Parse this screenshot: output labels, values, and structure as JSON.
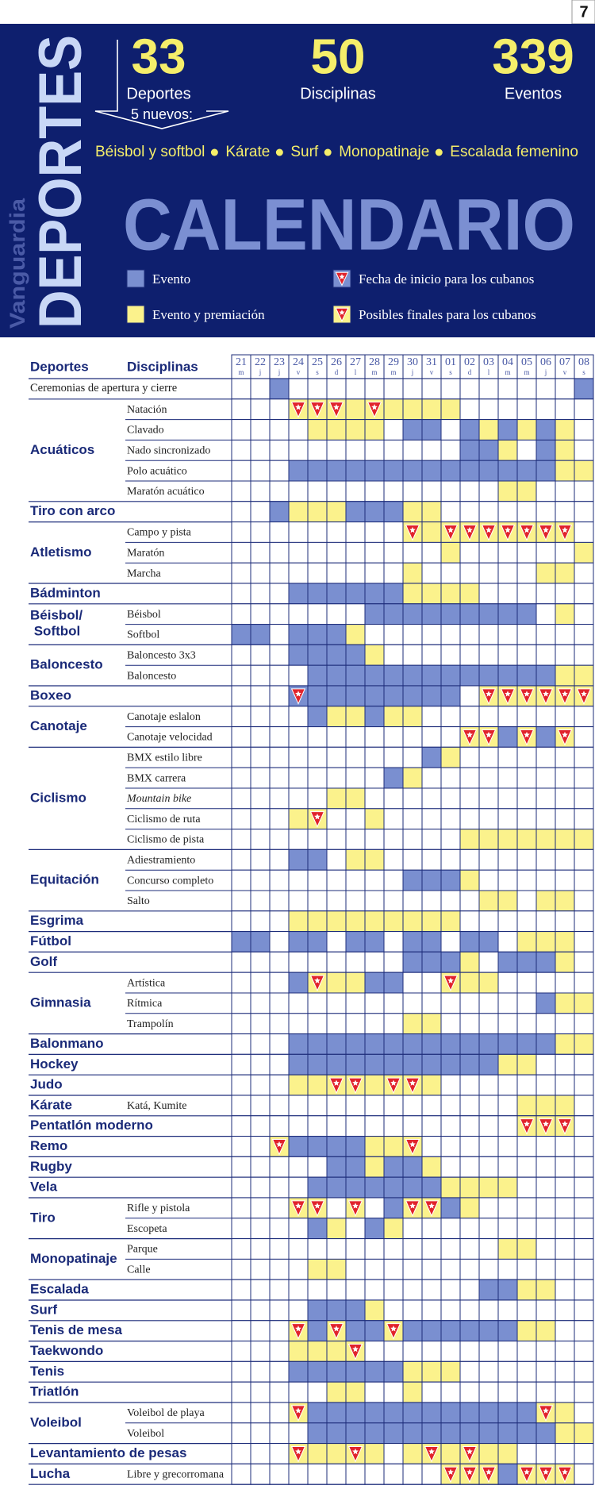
{
  "page_number": "7",
  "header": {
    "brand": "Vanguardia",
    "section": "DEPORTES",
    "stats": [
      {
        "value": "33",
        "label": "Deportes"
      },
      {
        "value": "50",
        "label": "Disciplinas"
      },
      {
        "value": "339",
        "label": "Eventos"
      }
    ],
    "new_count": "5 nuevos:",
    "new_sports": [
      "Béisbol y softbol",
      "Kárate",
      "Surf",
      "Monopatinaje",
      "Escalada femenino"
    ],
    "title": "CALENDARIO",
    "legend": [
      {
        "label": "Evento",
        "cell": "b"
      },
      {
        "label": "Evento y premiación",
        "cell": "y"
      },
      {
        "label": "Fecha de inicio para los cubanos",
        "cell": "B"
      },
      {
        "label": "Posibles finales para los cubanos",
        "cell": "Y"
      }
    ]
  },
  "table": {
    "columns": [
      "Deportes",
      "Disciplinas"
    ],
    "days": [
      {
        "day": "21",
        "weekday": "m"
      },
      {
        "day": "22",
        "weekday": "j"
      },
      {
        "day": "23",
        "weekday": "j"
      },
      {
        "day": "24",
        "weekday": "v"
      },
      {
        "day": "25",
        "weekday": "s"
      },
      {
        "day": "26",
        "weekday": "d"
      },
      {
        "day": "27",
        "weekday": "l"
      },
      {
        "day": "28",
        "weekday": "m"
      },
      {
        "day": "29",
        "weekday": "m"
      },
      {
        "day": "30",
        "weekday": "j"
      },
      {
        "day": "31",
        "weekday": "v"
      },
      {
        "day": "01",
        "weekday": "s"
      },
      {
        "day": "02",
        "weekday": "d"
      },
      {
        "day": "03",
        "weekday": "l"
      },
      {
        "day": "04",
        "weekday": "m"
      },
      {
        "day": "05",
        "weekday": "m"
      },
      {
        "day": "06",
        "weekday": "j"
      },
      {
        "day": "07",
        "weekday": "v"
      },
      {
        "day": "08",
        "weekday": "s"
      }
    ],
    "sports": [
      {
        "name": "Ceremonias de apertura y cierre",
        "font": "serif",
        "disciplines": [
          {
            "cells": "..b...............b"
          }
        ]
      },
      {
        "name": "Acuáticos",
        "disciplines": [
          {
            "name": "Natación",
            "cells": "...YYYyYyyyy......."
          },
          {
            "name": "Clavado",
            "cells": "....yyyy.bb.bybyby."
          },
          {
            "name": "Nado sincronizado",
            "cells": "............bby.by."
          },
          {
            "name": "Polo acuático",
            "cells": "...bbbbbbbbbbbbbbyy"
          },
          {
            "name": "Maratón acuático",
            "cells": "..............yy..."
          }
        ]
      },
      {
        "name": "Tiro con arco",
        "disciplines": [
          {
            "cells": "..byyybbbyy........"
          }
        ]
      },
      {
        "name": "Atletismo",
        "disciplines": [
          {
            "name": "Campo y pista",
            "cells": ".........YyYYYYYYY."
          },
          {
            "name": "Maratón",
            "cells": "...........y......y"
          },
          {
            "name": "Marcha",
            "cells": ".........y......yy."
          }
        ]
      },
      {
        "name": "Bádminton",
        "disciplines": [
          {
            "cells": "...bbbbbbyyyy......"
          }
        ]
      },
      {
        "name": "Béisbol/ Softbol",
        "disciplines": [
          {
            "name": "Béisbol",
            "cells": ".......bbbbbbbbb.y."
          },
          {
            "name": "Softbol",
            "cells": "bb.bbby............"
          }
        ]
      },
      {
        "name": "Baloncesto",
        "disciplines": [
          {
            "name": "Baloncesto 3x3",
            "cells": "...bbbby..........."
          },
          {
            "name": "Baloncesto",
            "cells": "....bbbbbbbbbbbbbyy"
          }
        ]
      },
      {
        "name": "Boxeo",
        "disciplines": [
          {
            "cells": "...Bbbbbbbbb.YYYYYY"
          }
        ]
      },
      {
        "name": "Canotaje",
        "disciplines": [
          {
            "name": "Canotaje eslalon",
            "cells": "....byybyy........."
          },
          {
            "name": "Canotaje velocidad",
            "cells": "............YYbYbY."
          }
        ]
      },
      {
        "name": "Ciclismo",
        "disciplines": [
          {
            "name": "BMX estilo libre",
            "cells": "..........by......."
          },
          {
            "name": "BMX carrera",
            "cells": "........by........."
          },
          {
            "name": "Mountain bike",
            "italic": true,
            "cells": ".....yy............"
          },
          {
            "name": "Ciclismo de ruta",
            "cells": "...yY..y..........."
          },
          {
            "name": "Ciclismo de pista",
            "cells": "............yyyyyyy"
          }
        ]
      },
      {
        "name": "Equitación",
        "disciplines": [
          {
            "name": "Adiestramiento",
            "cells": "...bb.yy..........."
          },
          {
            "name": "Concurso completo",
            "cells": ".........bbby......"
          },
          {
            "name": "Salto",
            "cells": ".............yy.yy."
          }
        ]
      },
      {
        "name": "Esgrima",
        "disciplines": [
          {
            "cells": "...yyyyyyyyy......."
          }
        ]
      },
      {
        "name": "Fútbol",
        "disciplines": [
          {
            "cells": "bb.bb.bb.bb.bb.yyy."
          }
        ]
      },
      {
        "name": "Golf",
        "disciplines": [
          {
            "cells": ".........bbby.bbby."
          }
        ]
      },
      {
        "name": "Gimnasia",
        "disciplines": [
          {
            "name": "Artística",
            "cells": "...bYyybb..Yyy....."
          },
          {
            "name": "Rítmica",
            "cells": "................byy"
          },
          {
            "name": "Trampolín",
            "cells": ".........yy........"
          }
        ]
      },
      {
        "name": "Balonmano",
        "disciplines": [
          {
            "cells": "...bbbbbbbbbbbbbbyy"
          }
        ]
      },
      {
        "name": "Hockey",
        "disciplines": [
          {
            "cells": "...bbbbbbbbbbbyy..."
          }
        ]
      },
      {
        "name": "Judo",
        "disciplines": [
          {
            "cells": "...yyYYyYYy........"
          }
        ]
      },
      {
        "name": "Kárate",
        "disciplines": [
          {
            "name": "Katá, Kumite",
            "cells": "...............yyy."
          }
        ]
      },
      {
        "name": "Pentatlón moderno",
        "disciplines": [
          {
            "cells": "...............YYY."
          }
        ]
      },
      {
        "name": "Remo",
        "disciplines": [
          {
            "cells": "..YbbbbyyY........."
          }
        ]
      },
      {
        "name": "Rugby",
        "disciplines": [
          {
            "cells": ".....bbybby........"
          }
        ]
      },
      {
        "name": "Vela",
        "disciplines": [
          {
            "cells": "....bbbbbbbyyyy...."
          }
        ]
      },
      {
        "name": "Tiro",
        "disciplines": [
          {
            "name": "Rifle y pistola",
            "cells": "...YY.Y.bYYby......"
          },
          {
            "name": "Escopeta",
            "cells": "....by.by.........."
          }
        ]
      },
      {
        "name": "Monopatinaje",
        "disciplines": [
          {
            "name": "Parque",
            "cells": "..............yy..."
          },
          {
            "name": "Calle",
            "cells": "....yy............."
          }
        ]
      },
      {
        "name": "Escalada",
        "disciplines": [
          {
            "cells": ".............bbyy.."
          }
        ]
      },
      {
        "name": "Surf",
        "disciplines": [
          {
            "cells": "....bbby..........."
          }
        ]
      },
      {
        "name": "Tenis de mesa",
        "disciplines": [
          {
            "cells": "...YbYbbYbbbbbbyy.."
          }
        ]
      },
      {
        "name": "Taekwondo",
        "disciplines": [
          {
            "cells": "...yyyY............"
          }
        ]
      },
      {
        "name": "Tenis",
        "disciplines": [
          {
            "cells": "...bbbbbbyyy......."
          }
        ]
      },
      {
        "name": "Triatlón",
        "disciplines": [
          {
            "cells": ".....yy..y........."
          }
        ]
      },
      {
        "name": "Voleibol",
        "disciplines": [
          {
            "name": "Voleibol de playa",
            "cells": "...YbbbbbbbbbbbbYy."
          },
          {
            "name": "Voleibol",
            "cells": "....bbbbbbbbbbbbbyy"
          }
        ]
      },
      {
        "name": "Levantamiento de pesas",
        "disciplines": [
          {
            "cells": "...YyyYy.yYyYyy...."
          }
        ]
      },
      {
        "name": "Lucha",
        "disciplines": [
          {
            "name": "Libre y grecorromana",
            "cells": "...........YYYbYYY."
          }
        ]
      }
    ]
  }
}
